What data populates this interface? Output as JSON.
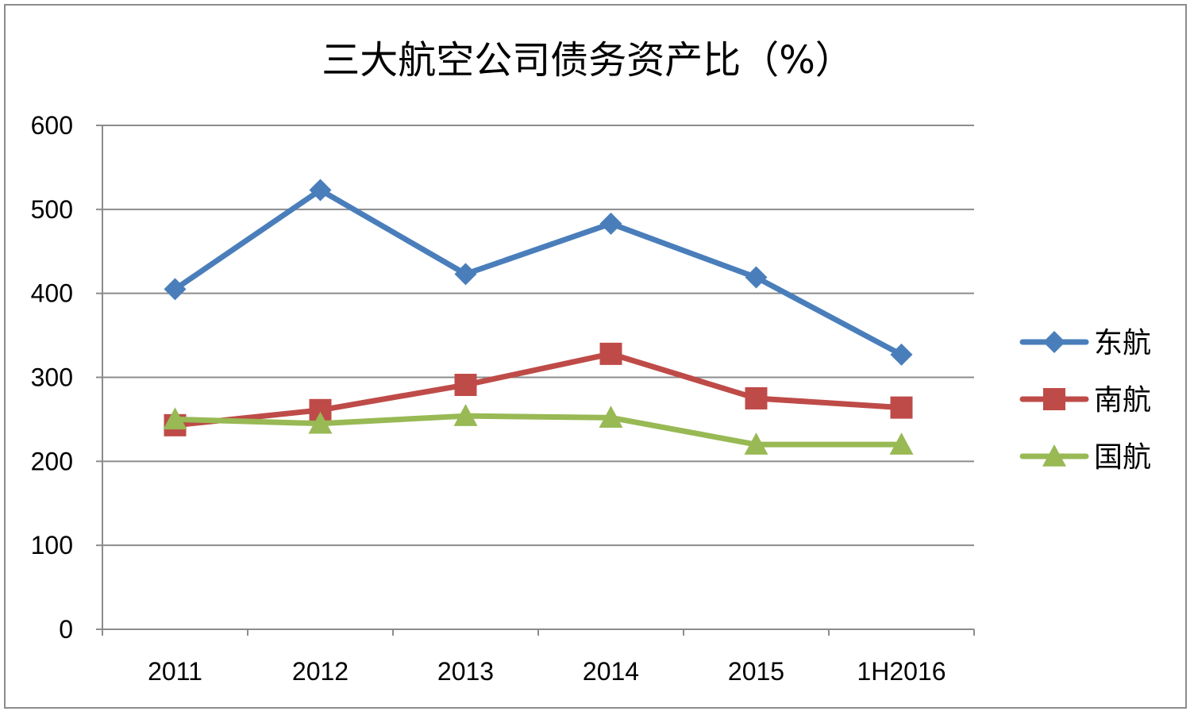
{
  "chart_data": {
    "type": "line",
    "title": "三大航空公司债务资产比（%）",
    "xlabel": "",
    "ylabel": "",
    "categories": [
      "2011",
      "2012",
      "2013",
      "2014",
      "2015",
      "1H2016"
    ],
    "ylim": [
      0,
      600
    ],
    "yticks": [
      "0",
      "100",
      "200",
      "300",
      "400",
      "500",
      "600"
    ],
    "grid": true,
    "legend_position": "right",
    "series": [
      {
        "name": "东航",
        "values": [
          405,
          523,
          423,
          483,
          419,
          327
        ],
        "color": "#4a7ebb",
        "marker": "diamond"
      },
      {
        "name": "南航",
        "values": [
          243,
          261,
          291,
          328,
          275,
          264
        ],
        "color": "#be4b48",
        "marker": "square"
      },
      {
        "name": "国航",
        "values": [
          250,
          245,
          254,
          252,
          220,
          220
        ],
        "color": "#98b954",
        "marker": "triangle"
      }
    ]
  }
}
